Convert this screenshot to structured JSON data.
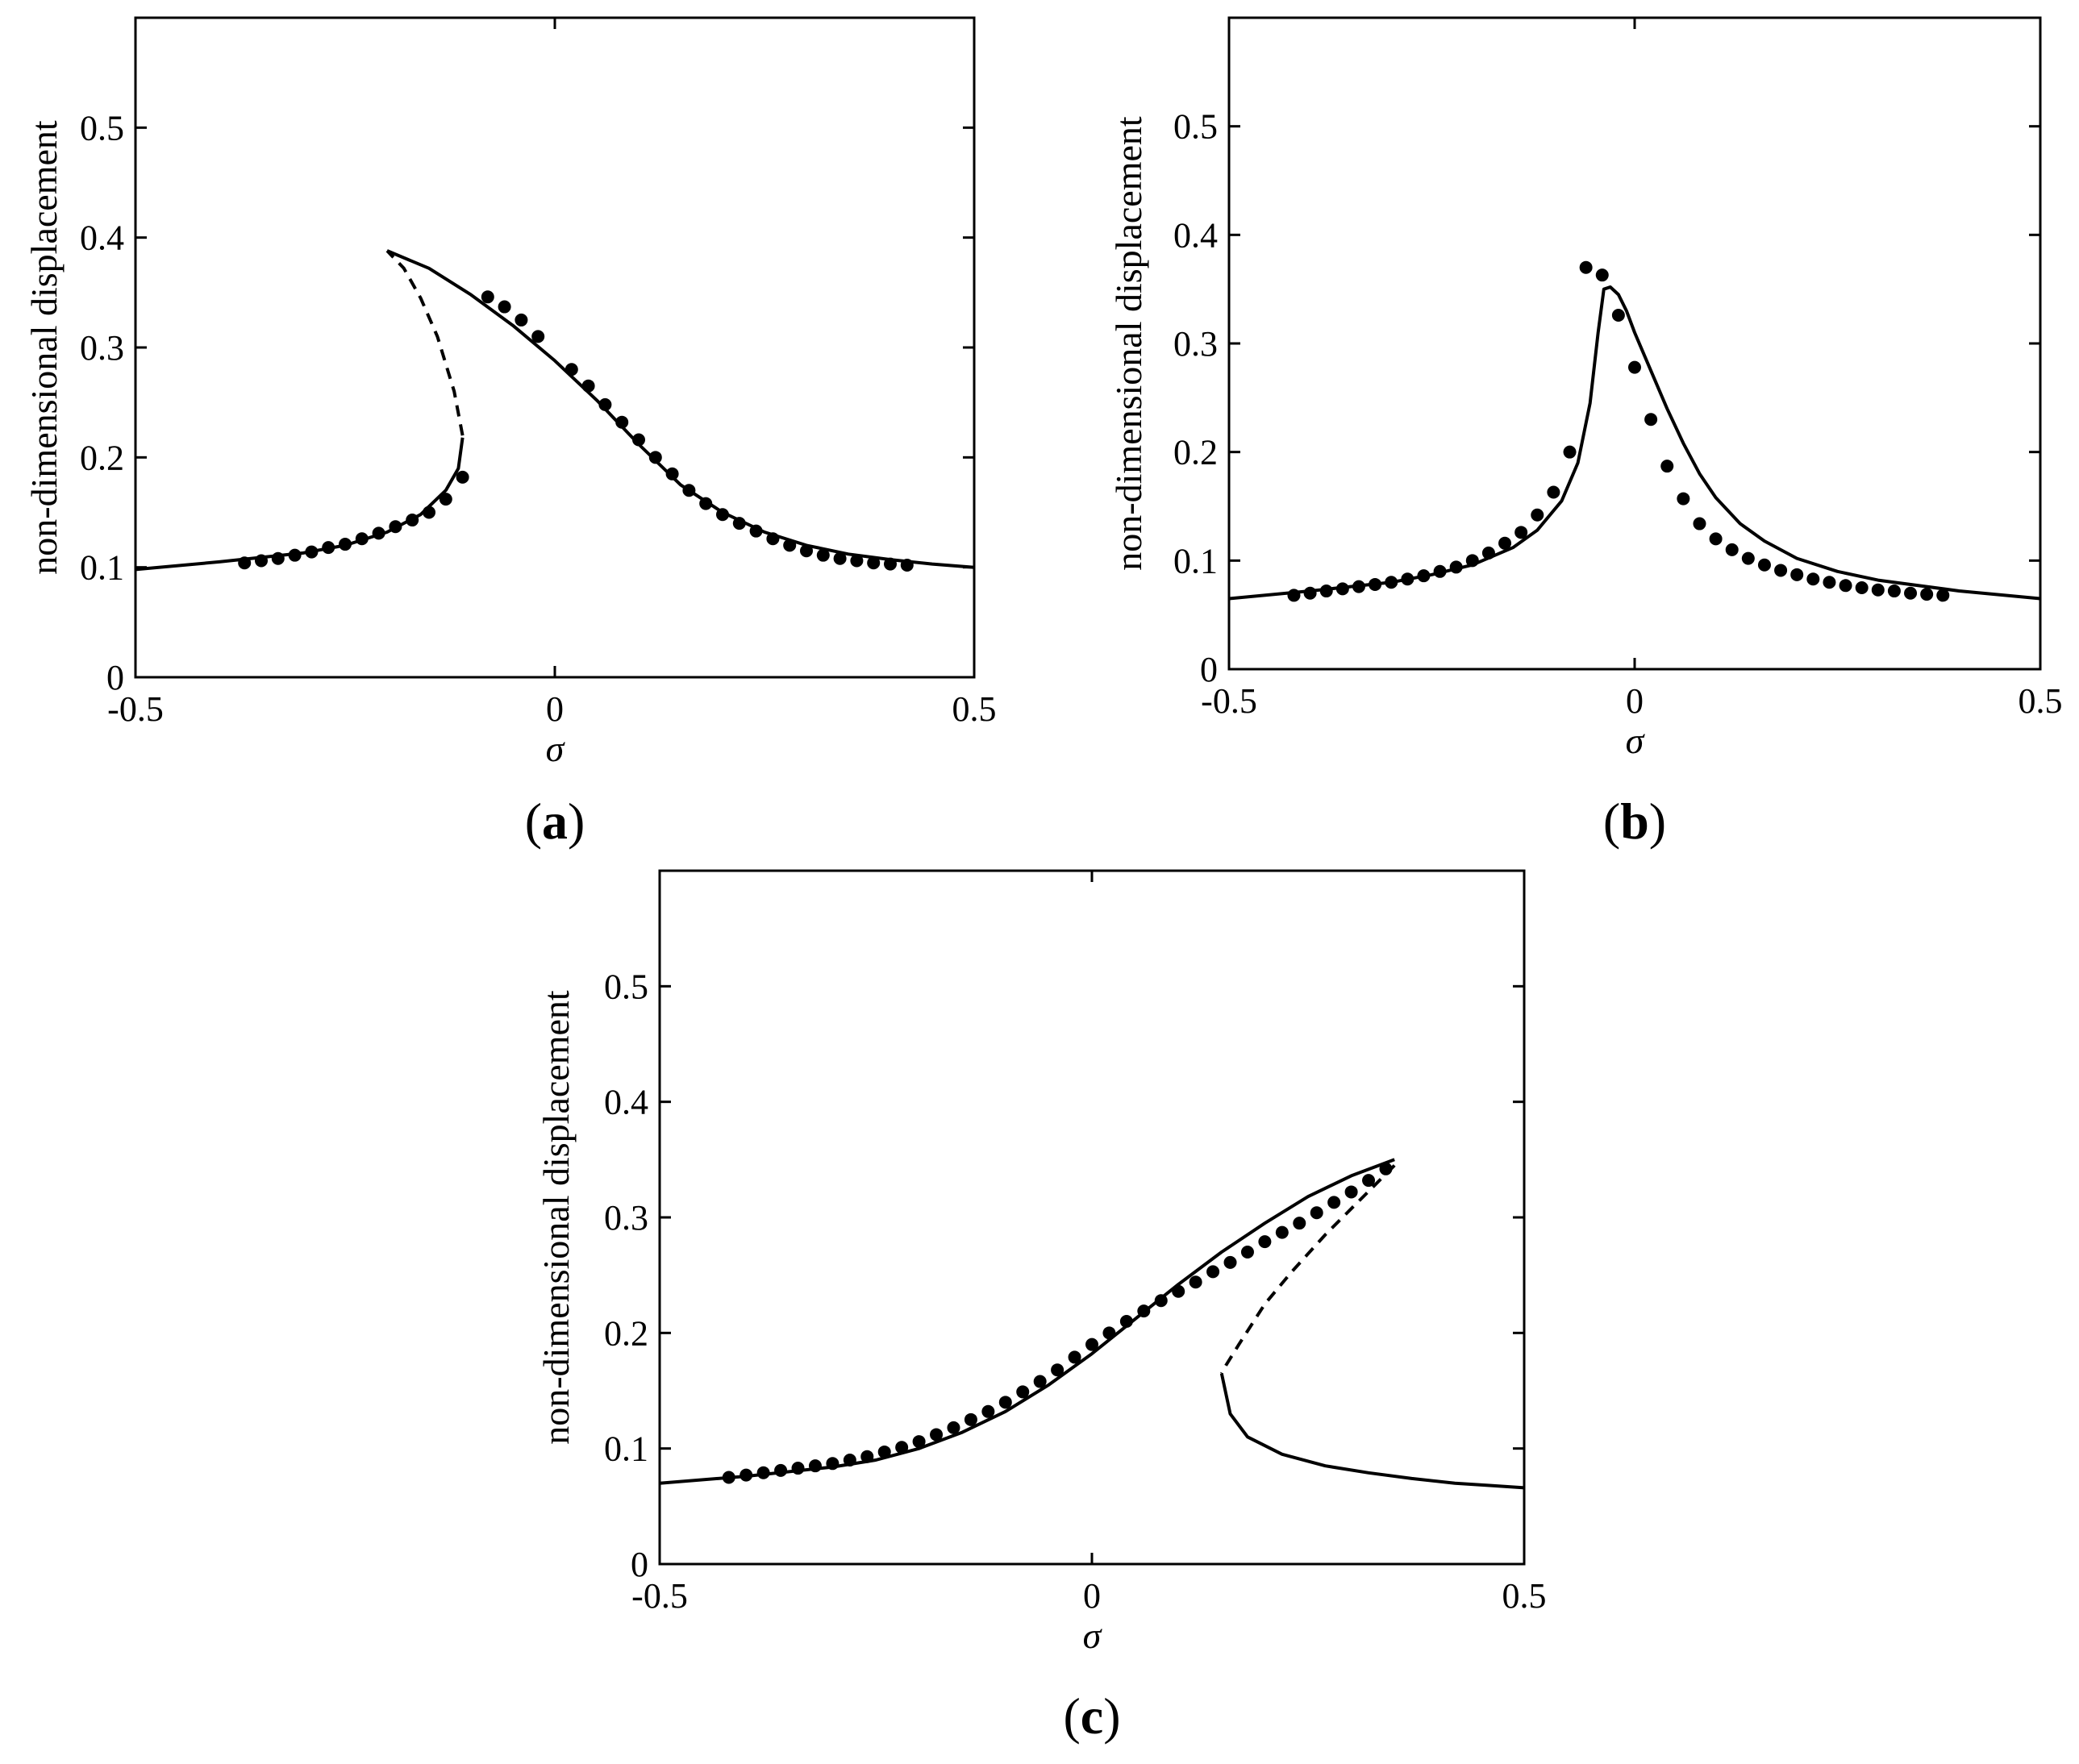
{
  "colors": {
    "ink": "#000000",
    "background": "#ffffff"
  },
  "chart_data": [
    {
      "panel": "(a)",
      "caption_letter": "a",
      "type": "line",
      "xlabel": "σ",
      "ylabel": "non-dimensional displacement",
      "xlim": [
        -0.5,
        0.5
      ],
      "ylim": [
        0,
        0.6
      ],
      "xticks": [
        -0.5,
        0,
        0.5
      ],
      "xtick_labels": [
        "-0.5",
        "0",
        "0.5"
      ],
      "yticks": [
        0,
        0.1,
        0.2,
        0.3,
        0.4,
        0.5
      ],
      "ytick_labels": [
        "0",
        "0.1",
        "0.2",
        "0.3",
        "0.4",
        "0.5"
      ],
      "grid": false,
      "series": [
        {
          "style": "solid",
          "x": [
            -0.5,
            -0.4,
            -0.3,
            -0.25,
            -0.2,
            -0.16,
            -0.13,
            -0.115,
            -0.11
          ],
          "y": [
            0.098,
            0.105,
            0.113,
            0.12,
            0.132,
            0.148,
            0.17,
            0.19,
            0.218
          ]
        },
        {
          "style": "dashed",
          "x": [
            -0.11,
            -0.12,
            -0.14,
            -0.16,
            -0.18,
            -0.2
          ],
          "y": [
            0.22,
            0.26,
            0.31,
            0.345,
            0.372,
            0.388
          ]
        },
        {
          "style": "solid",
          "x": [
            -0.2,
            -0.15,
            -0.1,
            -0.05,
            0,
            0.05,
            0.1,
            0.15,
            0.2,
            0.25,
            0.3,
            0.35,
            0.4,
            0.45,
            0.5
          ],
          "y": [
            0.388,
            0.372,
            0.348,
            0.32,
            0.288,
            0.252,
            0.212,
            0.175,
            0.15,
            0.132,
            0.12,
            0.112,
            0.107,
            0.103,
            0.1
          ]
        },
        {
          "style": "markers",
          "x": [
            -0.37,
            -0.35,
            -0.33,
            -0.31,
            -0.29,
            -0.27,
            -0.25,
            -0.23,
            -0.21,
            -0.19,
            -0.17,
            -0.15,
            -0.13,
            -0.11,
            -0.08,
            -0.06,
            -0.04,
            -0.02,
            0.02,
            0.04,
            0.06,
            0.08,
            0.1,
            0.12,
            0.14,
            0.16,
            0.18,
            0.2,
            0.22,
            0.24,
            0.26,
            0.28,
            0.3,
            0.32,
            0.34,
            0.36,
            0.38,
            0.4,
            0.42
          ],
          "y": [
            0.104,
            0.106,
            0.108,
            0.111,
            0.114,
            0.118,
            0.121,
            0.126,
            0.131,
            0.137,
            0.143,
            0.15,
            0.162,
            0.182,
            0.346,
            0.337,
            0.325,
            0.31,
            0.28,
            0.265,
            0.248,
            0.232,
            0.216,
            0.2,
            0.185,
            0.17,
            0.158,
            0.148,
            0.14,
            0.133,
            0.126,
            0.12,
            0.115,
            0.111,
            0.108,
            0.106,
            0.104,
            0.103,
            0.102
          ]
        }
      ]
    },
    {
      "panel": "(b)",
      "caption_letter": "b",
      "type": "line",
      "xlabel": "σ",
      "ylabel": "non-dimensional displacement",
      "xlim": [
        -0.5,
        0.5
      ],
      "ylim": [
        0,
        0.6
      ],
      "xticks": [
        -0.5,
        0,
        0.5
      ],
      "xtick_labels": [
        "-0.5",
        "0",
        "0.5"
      ],
      "yticks": [
        0,
        0.1,
        0.2,
        0.3,
        0.4,
        0.5
      ],
      "ytick_labels": [
        "0",
        "0.1",
        "0.2",
        "0.3",
        "0.4",
        "0.5"
      ],
      "grid": false,
      "series": [
        {
          "style": "solid",
          "x": [
            -0.5,
            -0.4,
            -0.3,
            -0.25,
            -0.2,
            -0.15,
            -0.12,
            -0.09,
            -0.07,
            -0.055,
            -0.045,
            -0.038,
            -0.03,
            -0.02,
            -0.01,
            0,
            0.02,
            0.04,
            0.06,
            0.08,
            0.1,
            0.13,
            0.16,
            0.2,
            0.25,
            0.3,
            0.4,
            0.5
          ],
          "y": [
            0.065,
            0.072,
            0.08,
            0.087,
            0.096,
            0.112,
            0.128,
            0.155,
            0.19,
            0.245,
            0.31,
            0.35,
            0.352,
            0.345,
            0.33,
            0.31,
            0.275,
            0.24,
            0.208,
            0.18,
            0.158,
            0.134,
            0.118,
            0.102,
            0.09,
            0.082,
            0.072,
            0.065
          ]
        },
        {
          "style": "markers",
          "x": [
            -0.42,
            -0.4,
            -0.38,
            -0.36,
            -0.34,
            -0.32,
            -0.3,
            -0.28,
            -0.26,
            -0.24,
            -0.22,
            -0.2,
            -0.18,
            -0.16,
            -0.14,
            -0.12,
            -0.1,
            -0.08,
            -0.06,
            -0.04,
            -0.02,
            0,
            0.02,
            0.04,
            0.06,
            0.08,
            0.1,
            0.12,
            0.14,
            0.16,
            0.18,
            0.2,
            0.22,
            0.24,
            0.26,
            0.28,
            0.3,
            0.32,
            0.34,
            0.36,
            0.38
          ],
          "y": [
            0.068,
            0.07,
            0.072,
            0.074,
            0.076,
            0.078,
            0.08,
            0.083,
            0.086,
            0.09,
            0.094,
            0.1,
            0.107,
            0.116,
            0.126,
            0.142,
            0.163,
            0.2,
            0.37,
            0.363,
            0.326,
            0.278,
            0.23,
            0.187,
            0.157,
            0.134,
            0.12,
            0.11,
            0.102,
            0.096,
            0.091,
            0.087,
            0.083,
            0.08,
            0.077,
            0.075,
            0.073,
            0.072,
            0.07,
            0.069,
            0.068
          ]
        }
      ]
    },
    {
      "panel": "(c)",
      "caption_letter": "c",
      "type": "line",
      "xlabel": "σ",
      "ylabel": "non-dimensional displacement",
      "xlim": [
        -0.5,
        0.5
      ],
      "ylim": [
        0,
        0.6
      ],
      "xticks": [
        -0.5,
        0,
        0.5
      ],
      "xtick_labels": [
        "-0.5",
        "0",
        "0.5"
      ],
      "yticks": [
        0,
        0.1,
        0.2,
        0.3,
        0.4,
        0.5
      ],
      "ytick_labels": [
        "0",
        "0.1",
        "0.2",
        "0.3",
        "0.4",
        "0.5"
      ],
      "grid": false,
      "series": [
        {
          "style": "solid",
          "x": [
            -0.5,
            -0.4,
            -0.3,
            -0.25,
            -0.2,
            -0.15,
            -0.1,
            -0.05,
            0,
            0.05,
            0.1,
            0.15,
            0.2,
            0.25,
            0.3,
            0.35
          ],
          "y": [
            0.07,
            0.076,
            0.084,
            0.09,
            0.1,
            0.114,
            0.132,
            0.155,
            0.182,
            0.212,
            0.242,
            0.27,
            0.295,
            0.318,
            0.336,
            0.35
          ]
        },
        {
          "style": "dashed",
          "x": [
            0.35,
            0.31,
            0.27,
            0.23,
            0.2,
            0.17,
            0.155,
            0.15
          ],
          "y": [
            0.345,
            0.315,
            0.285,
            0.252,
            0.225,
            0.19,
            0.172,
            0.165
          ]
        },
        {
          "style": "solid",
          "x": [
            0.15,
            0.16,
            0.18,
            0.22,
            0.27,
            0.32,
            0.37,
            0.42,
            0.46,
            0.5
          ],
          "y": [
            0.165,
            0.13,
            0.11,
            0.095,
            0.085,
            0.079,
            0.074,
            0.07,
            0.068,
            0.066
          ]
        },
        {
          "style": "markers",
          "x": [
            -0.42,
            -0.4,
            -0.38,
            -0.36,
            -0.34,
            -0.32,
            -0.3,
            -0.28,
            -0.26,
            -0.24,
            -0.22,
            -0.2,
            -0.18,
            -0.16,
            -0.14,
            -0.12,
            -0.1,
            -0.08,
            -0.06,
            -0.04,
            -0.02,
            0,
            0.02,
            0.04,
            0.06,
            0.08,
            0.1,
            0.12,
            0.14,
            0.16,
            0.18,
            0.2,
            0.22,
            0.24,
            0.26,
            0.28,
            0.3,
            0.32,
            0.34,
            0.36,
            0.38,
            0.4,
            0.42,
            0.44,
            0.46,
            0.48,
            0.5
          ],
          "y": [
            0.075,
            0.077,
            0.079,
            0.081,
            0.083,
            0.085,
            0.087,
            0.09,
            0.093,
            0.097,
            0.101,
            0.106,
            0.112,
            0.118,
            0.125,
            0.132,
            0.14,
            0.149,
            0.158,
            0.168,
            0.179,
            0.19,
            0.2,
            0.21,
            0.219,
            0.228,
            0.236,
            0.244,
            0.253,
            0.261,
            0.27,
            0.279,
            0.287,
            0.295,
            0.304,
            0.313,
            0.322,
            0.332,
            0.342,
            null,
            null,
            null,
            null,
            null,
            null,
            null,
            null
          ]
        }
      ]
    }
  ]
}
